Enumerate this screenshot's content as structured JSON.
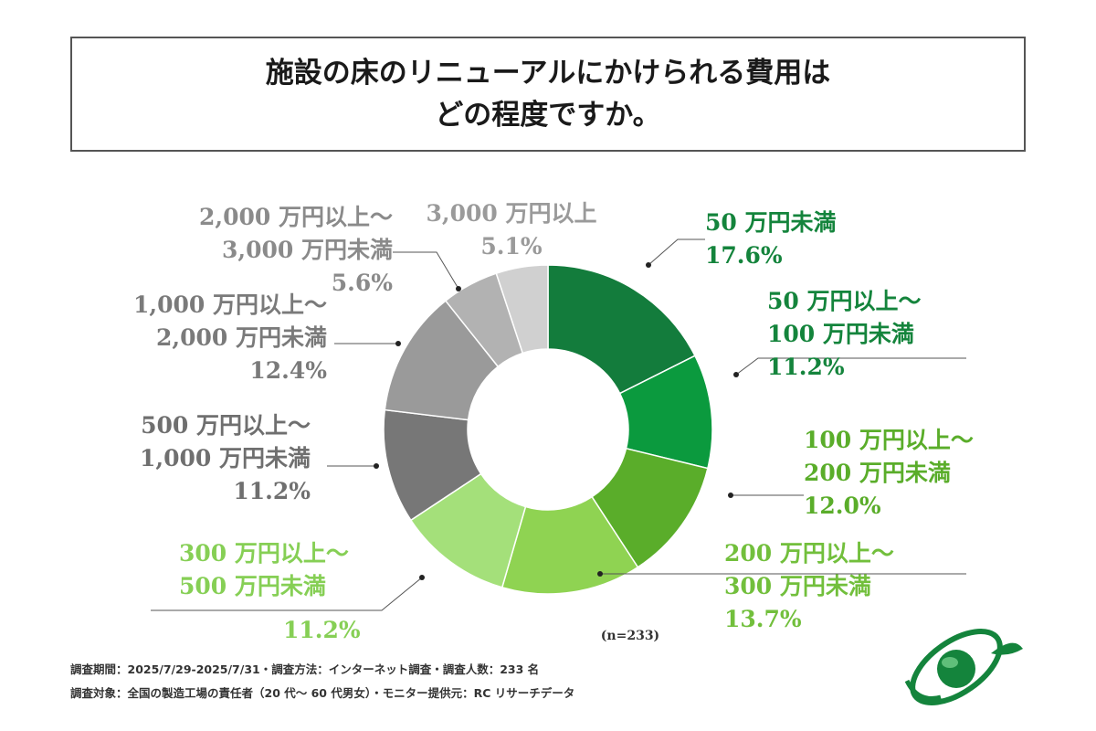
{
  "title": {
    "line1": "施設の床のリニューアルにかけられる費用は",
    "line2": "どの程度ですか。"
  },
  "chart_data": {
    "type": "pie",
    "variant": "donut",
    "title": "施設の床のリニューアルにかけられる費用はどの程度ですか。",
    "sample_note": "(n=233)",
    "slices": [
      {
        "label_lines": [
          "50 万円未満"
        ],
        "value": 17.6,
        "value_label": "17.6%",
        "color": "#137c3c",
        "text_color": "#14843c"
      },
      {
        "label_lines": [
          "50 万円以上～",
          "100 万円未満"
        ],
        "value": 11.2,
        "value_label": "11.2%",
        "color": "#0b9a3e",
        "text_color": "#14843c"
      },
      {
        "label_lines": [
          "100 万円以上～",
          "200 万円未満"
        ],
        "value": 12.0,
        "value_label": "12.0%",
        "color": "#5aad2a",
        "text_color": "#5aad2a"
      },
      {
        "label_lines": [
          "200 万円以上～",
          "300 万円未満"
        ],
        "value": 13.7,
        "value_label": "13.7%",
        "color": "#8fd352",
        "text_color": "#72bf3c"
      },
      {
        "label_lines": [
          "300 万円以上～",
          "500 万円未満"
        ],
        "value": 11.2,
        "value_label": "11.2%",
        "color": "#a4e07a",
        "text_color": "#86cf55"
      },
      {
        "label_lines": [
          "500 万円以上～",
          "1,000 万円未満"
        ],
        "value": 11.2,
        "value_label": "11.2%",
        "color": "#777777",
        "text_color": "#6f6f6f"
      },
      {
        "label_lines": [
          "1,000 万円以上～",
          "2,000 万円未満"
        ],
        "value": 12.4,
        "value_label": "12.4%",
        "color": "#9a9a9a",
        "text_color": "#7a7a7a"
      },
      {
        "label_lines": [
          "2,000 万円以上～",
          "3,000 万円未満"
        ],
        "value": 5.6,
        "value_label": "5.6%",
        "color": "#b2b2b2",
        "text_color": "#8a8a8a"
      },
      {
        "label_lines": [
          "3,000 万円以上"
        ],
        "value": 5.1,
        "value_label": "5.1%",
        "color": "#d0d0d0",
        "text_color": "#9a9a9a"
      }
    ]
  },
  "footer": {
    "line1": "調査期間：2025/7/29-2025/7/31・調査方法：インターネット調査・調査人数：233 名",
    "line2": "調査対象：全国の製造工場の責任者（20 代～ 60 代男女）・モニター提供元：RC リサーチデータ"
  },
  "colors": {
    "accent": "#14843c",
    "border": "#555555"
  }
}
